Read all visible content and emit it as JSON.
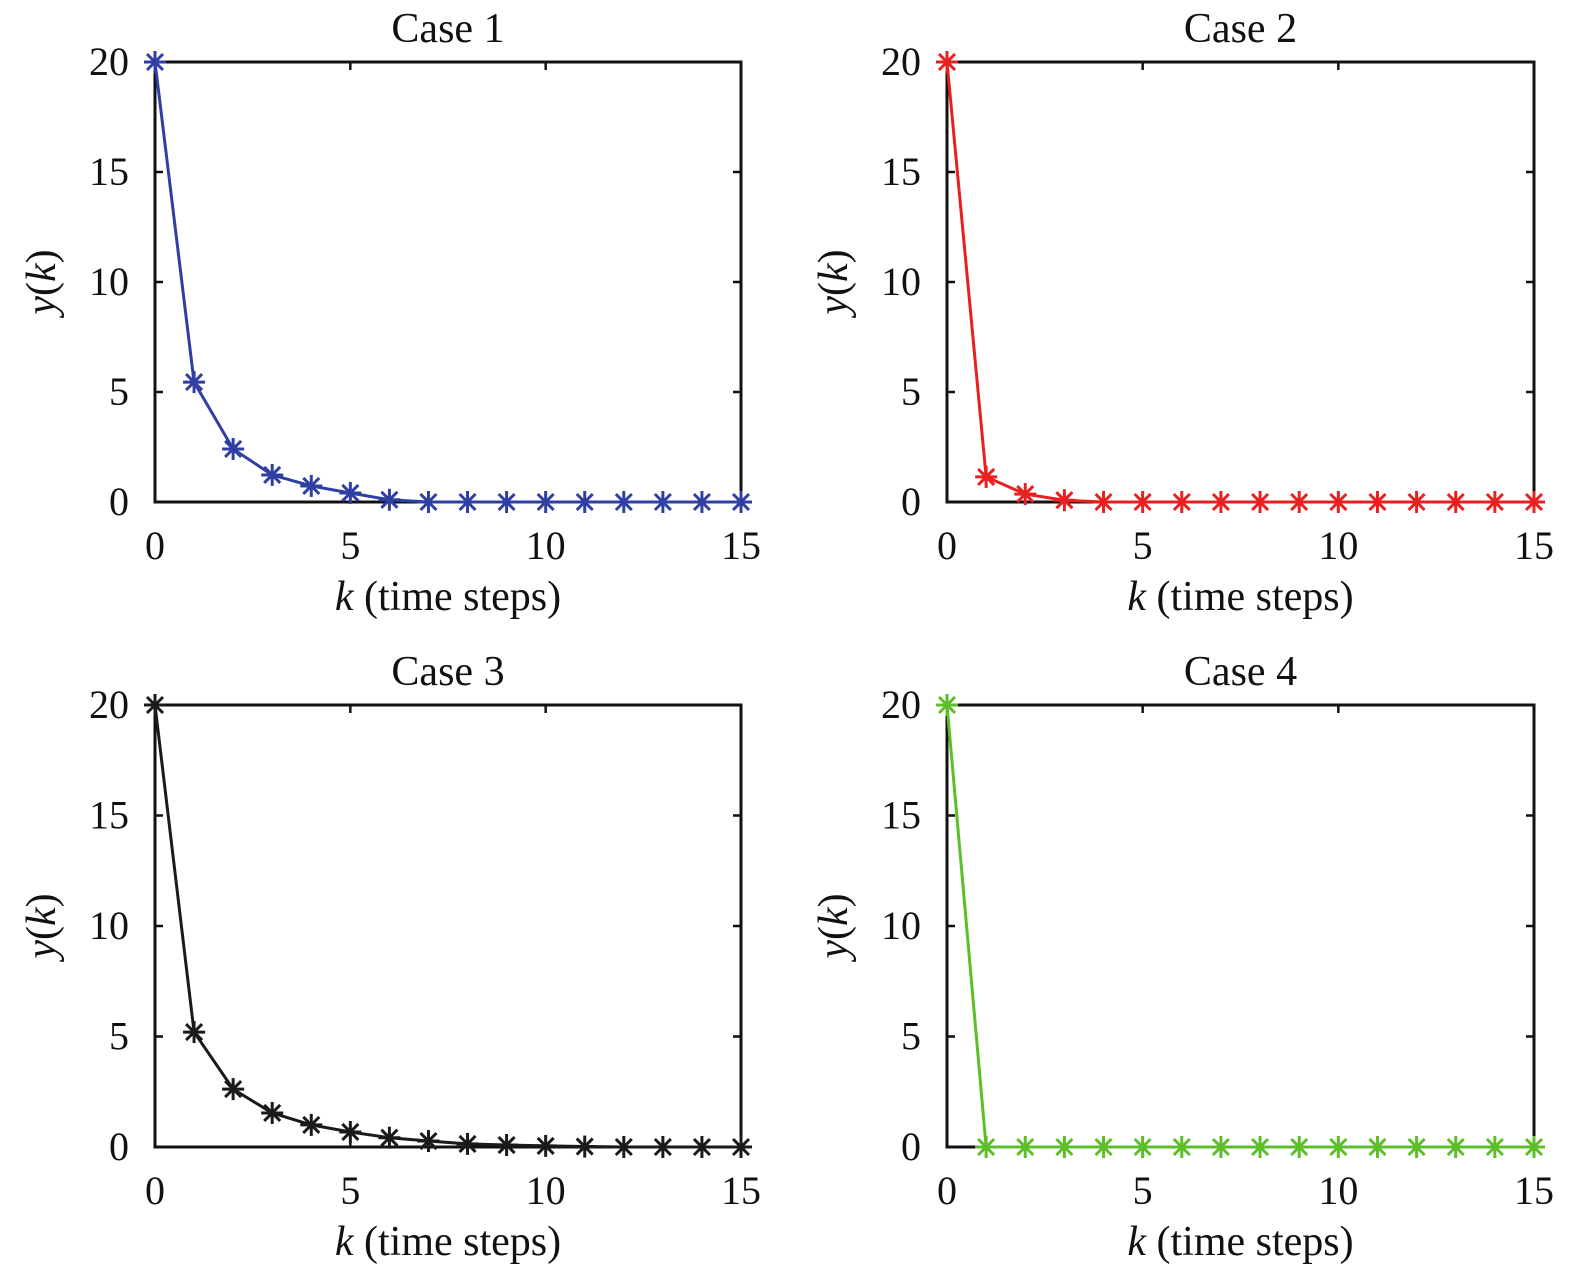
{
  "chart_data": [
    {
      "type": "line",
      "title": "Case 1",
      "xlabel_var": "k",
      "xlabel_rest": " (time steps)",
      "ylabel_var": "y",
      "ylabel_arg": "k",
      "xlim": [
        0,
        15
      ],
      "ylim": [
        0,
        20
      ],
      "xticks": [
        0,
        5,
        10,
        15
      ],
      "yticks": [
        0,
        5,
        10,
        15,
        20
      ],
      "x": [
        0,
        1,
        2,
        3,
        4,
        5,
        6,
        7,
        8,
        9,
        10,
        11,
        12,
        13,
        14,
        15
      ],
      "values": [
        20,
        5.45,
        2.41,
        1.23,
        0.73,
        0.41,
        0.1,
        0,
        0,
        0,
        0,
        0,
        0,
        0,
        0,
        0
      ],
      "color": "#2f3fa3",
      "marker": "asterisk"
    },
    {
      "type": "line",
      "title": "Case 2",
      "xlabel_var": "k",
      "xlabel_rest": " (time steps)",
      "ylabel_var": "y",
      "ylabel_arg": "k",
      "xlim": [
        0,
        15
      ],
      "ylim": [
        0,
        20
      ],
      "xticks": [
        0,
        5,
        10,
        15
      ],
      "yticks": [
        0,
        5,
        10,
        15,
        20
      ],
      "x": [
        0,
        1,
        2,
        3,
        4,
        5,
        6,
        7,
        8,
        9,
        10,
        11,
        12,
        13,
        14,
        15
      ],
      "values": [
        20,
        1.14,
        0.36,
        0.08,
        0,
        0,
        0,
        0,
        0,
        0,
        0,
        0,
        0,
        0,
        0,
        0
      ],
      "color": "#e8201f",
      "marker": "asterisk"
    },
    {
      "type": "line",
      "title": "Case 3",
      "xlabel_var": "k",
      "xlabel_rest": " (time steps)",
      "ylabel_var": "y",
      "ylabel_arg": "k",
      "xlim": [
        0,
        15
      ],
      "ylim": [
        0,
        20
      ],
      "xticks": [
        0,
        5,
        10,
        15
      ],
      "yticks": [
        0,
        5,
        10,
        15,
        20
      ],
      "x": [
        0,
        1,
        2,
        3,
        4,
        5,
        6,
        7,
        8,
        9,
        10,
        11,
        12,
        13,
        14,
        15
      ],
      "values": [
        20,
        5.2,
        2.62,
        1.54,
        1.0,
        0.68,
        0.42,
        0.27,
        0.14,
        0.09,
        0.05,
        0.02,
        0,
        0,
        0,
        0
      ],
      "color": "#1a1a1a",
      "marker": "asterisk"
    },
    {
      "type": "line",
      "title": "Case 4",
      "xlabel_var": "k",
      "xlabel_rest": " (time steps)",
      "ylabel_var": "y",
      "ylabel_arg": "k",
      "xlim": [
        0,
        15
      ],
      "ylim": [
        0,
        20
      ],
      "xticks": [
        0,
        5,
        10,
        15
      ],
      "yticks": [
        0,
        5,
        10,
        15,
        20
      ],
      "x": [
        0,
        1,
        2,
        3,
        4,
        5,
        6,
        7,
        8,
        9,
        10,
        11,
        12,
        13,
        14,
        15
      ],
      "values": [
        20,
        0,
        0,
        0,
        0,
        0,
        0,
        0,
        0,
        0,
        0,
        0,
        0,
        0,
        0,
        0
      ],
      "color": "#5cbf2a",
      "marker": "asterisk"
    }
  ]
}
